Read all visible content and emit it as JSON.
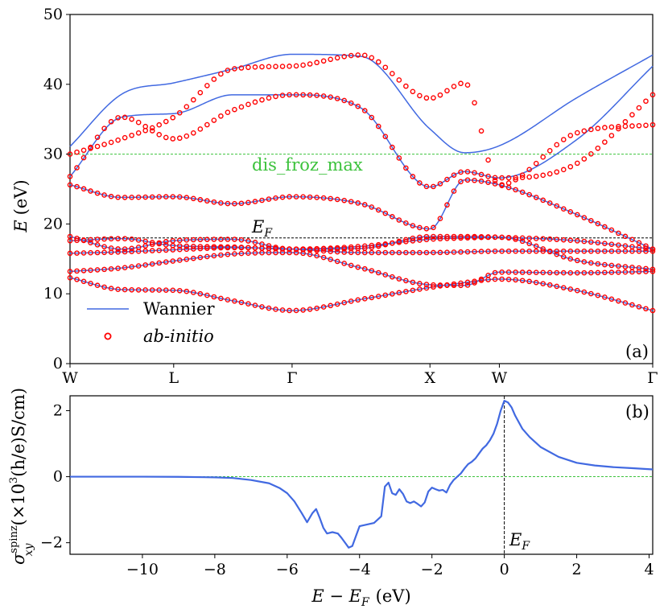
{
  "chart_data": [
    {
      "panel": "a",
      "type": "line",
      "panel_label": "(a)",
      "ylabel_var": "E",
      "ylabel_unit": "(eV)",
      "ylim": [
        0,
        50
      ],
      "yticks": [
        0,
        10,
        20,
        30,
        40,
        50
      ],
      "kpoints": [
        "W",
        "L",
        "Γ",
        "X",
        "W",
        "Γ"
      ],
      "kpath_positions": [
        0,
        0.1779,
        0.3811,
        0.6177,
        0.7368,
        1.0
      ],
      "hlines": [
        {
          "name": "dis_froz_max",
          "y": 30.0,
          "color": "#3cc23c",
          "label": "dis_froz_max"
        },
        {
          "name": "fermi",
          "y": 18.0,
          "color": "#000000",
          "label": "E",
          "label_sub": "F"
        }
      ],
      "legend": {
        "placement": "lower-left",
        "entries": [
          {
            "name": "wannier",
            "label": "Wannier",
            "style": "line",
            "color": "#4169e1"
          },
          {
            "name": "abinitio",
            "label": "ab-initio",
            "style": "circle",
            "color": "#ff0000"
          }
        ]
      },
      "series": [
        {
          "name": "ab-initio",
          "style": "circle",
          "color": "#ff0000",
          "bands": [
            [
              12.3,
              10.6,
              10.5,
              9.0,
              7.6,
              9.2,
              10.9,
              11.6,
              12.1,
              10.5,
              7.6
            ],
            [
              13.2,
              13.7,
              14.7,
              15.7,
              15.9,
              13.7,
              11.3,
              11.2,
              13.1,
              13.0,
              13.2
            ],
            [
              15.8,
              16.0,
              16.3,
              16.6,
              16.4,
              15.9,
              15.9,
              16.0,
              16.1,
              16.1,
              16.1
            ],
            [
              17.6,
              17.9,
              16.9,
              16.7,
              16.4,
              16.8,
              17.8,
              18.0,
              18.1,
              14.8,
              13.5
            ],
            [
              18.2,
              16.4,
              17.6,
              17.8,
              16.4,
              16.5,
              18.2,
              18.2,
              18.1,
              17.6,
              16.4
            ],
            [
              25.6,
              23.8,
              23.9,
              22.9,
              23.9,
              22.9,
              19.3,
              26.3,
              25.6,
              21.4,
              16.4
            ],
            [
              26.8,
              35.3,
              32.2,
              36.3,
              38.5,
              36.6,
              25.3,
              27.5,
              26.6,
              28.6,
              38.5
            ],
            [
              30.0,
              32.2,
              35.3,
              42.2,
              42.6,
              44.2,
              38.0,
              40.2,
              25.6,
              33.0,
              34.2
            ]
          ]
        },
        {
          "name": "Wannier",
          "style": "line",
          "color": "#4169e1",
          "bands": [
            [
              12.3,
              10.6,
              10.5,
              9.0,
              7.6,
              9.2,
              10.9,
              11.6,
              12.1,
              10.5,
              7.6
            ],
            [
              13.2,
              13.7,
              14.7,
              15.7,
              15.9,
              13.7,
              11.3,
              11.2,
              13.1,
              13.0,
              13.2
            ],
            [
              15.8,
              16.0,
              16.3,
              16.6,
              16.4,
              15.9,
              15.9,
              16.0,
              16.1,
              16.1,
              16.1
            ],
            [
              17.6,
              17.9,
              16.9,
              16.7,
              16.4,
              16.8,
              17.8,
              18.0,
              18.1,
              14.8,
              13.5
            ],
            [
              18.2,
              16.4,
              17.6,
              17.8,
              16.4,
              16.5,
              18.2,
              18.2,
              18.1,
              17.6,
              16.4
            ],
            [
              25.6,
              23.8,
              23.9,
              22.9,
              23.9,
              22.9,
              19.3,
              26.3,
              25.6,
              21.4,
              16.4
            ],
            [
              26.8,
              35.3,
              35.8,
              38.5,
              38.5,
              36.6,
              25.3,
              27.5,
              26.6,
              32.0,
              42.6
            ],
            [
              31.1,
              38.6,
              40.2,
              42.2,
              44.3,
              44.0,
              33.6,
              30.2,
              31.2,
              38.0,
              44.2
            ]
          ]
        }
      ]
    },
    {
      "panel": "b",
      "type": "line",
      "panel_label": "(b)",
      "xlabel": "E − E",
      "xlabel_sub": "F",
      "xlabel_unit": "(eV)",
      "ylabel_sym": "σ",
      "ylabel_sup": "spinz",
      "ylabel_sub": "xy",
      "ylabel_unit": "(×10",
      "ylabel_unit_sup": "3",
      "ylabel_unit_rest": "(h/e)S/cm)",
      "xlim": [
        -12,
        4.1
      ],
      "ylim": [
        -2.35,
        2.45
      ],
      "xticks": [
        -10,
        -8,
        -6,
        -4,
        -2,
        0,
        2,
        4
      ],
      "yticks": [
        -2,
        0,
        2
      ],
      "zero_line": {
        "y": 0,
        "color": "#3cc23c"
      },
      "fermi_line": {
        "x": 0,
        "label": "E",
        "label_sub": "F",
        "color": "#000000"
      },
      "series": [
        {
          "name": "sigma_spinz_xy",
          "color": "#4169e1",
          "x": [
            -12,
            -10,
            -9,
            -8,
            -7.5,
            -7,
            -6.5,
            -6.2,
            -6.0,
            -5.8,
            -5.6,
            -5.45,
            -5.3,
            -5.2,
            -5.1,
            -5.0,
            -4.9,
            -4.75,
            -4.6,
            -4.5,
            -4.4,
            -4.3,
            -4.2,
            -4.1,
            -4.0,
            -3.8,
            -3.6,
            -3.4,
            -3.3,
            -3.2,
            -3.1,
            -3.0,
            -2.9,
            -2.8,
            -2.7,
            -2.6,
            -2.5,
            -2.4,
            -2.3,
            -2.2,
            -2.1,
            -2.0,
            -1.9,
            -1.8,
            -1.7,
            -1.6,
            -1.5,
            -1.4,
            -1.3,
            -1.2,
            -1.1,
            -1.0,
            -0.9,
            -0.8,
            -0.7,
            -0.6,
            -0.5,
            -0.4,
            -0.3,
            -0.2,
            -0.1,
            0.0,
            0.1,
            0.2,
            0.3,
            0.5,
            0.7,
            1.0,
            1.5,
            2.0,
            2.5,
            3.0,
            3.5,
            4.1
          ],
          "y": [
            0.0,
            0.0,
            -0.005,
            -0.02,
            -0.04,
            -0.1,
            -0.2,
            -0.35,
            -0.5,
            -0.75,
            -1.1,
            -1.38,
            -1.1,
            -0.98,
            -1.25,
            -1.55,
            -1.72,
            -1.68,
            -1.72,
            -1.85,
            -2.0,
            -2.15,
            -2.1,
            -1.8,
            -1.5,
            -1.45,
            -1.4,
            -1.2,
            -0.3,
            -0.18,
            -0.5,
            -0.55,
            -0.38,
            -0.52,
            -0.75,
            -0.8,
            -0.75,
            -0.82,
            -0.9,
            -0.78,
            -0.45,
            -0.33,
            -0.38,
            -0.42,
            -0.4,
            -0.48,
            -0.25,
            -0.1,
            0.0,
            0.1,
            0.25,
            0.38,
            0.45,
            0.55,
            0.7,
            0.85,
            0.95,
            1.1,
            1.3,
            1.6,
            2.0,
            2.3,
            2.25,
            2.1,
            1.85,
            1.45,
            1.2,
            0.9,
            0.6,
            0.42,
            0.34,
            0.29,
            0.26,
            0.22
          ]
        }
      ]
    }
  ]
}
